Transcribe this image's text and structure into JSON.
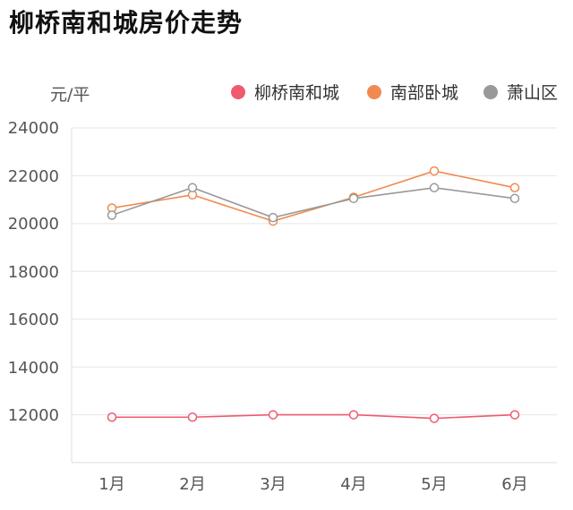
{
  "title": "柳桥南和城房价走势",
  "chart_data": {
    "type": "line",
    "title": "柳桥南和城房价走势",
    "ylabel": "元/平",
    "categories": [
      "1月",
      "2月",
      "3月",
      "4月",
      "5月",
      "6月"
    ],
    "ylim": [
      10000,
      24000
    ],
    "yticks": [
      "24000",
      "22000",
      "20000",
      "18000",
      "16000",
      "14000",
      "12000"
    ],
    "legend_position": "top-right",
    "grid": true,
    "series": [
      {
        "name": "柳桥南和城",
        "color": "#ef5a6f",
        "values": [
          11900,
          11900,
          12000,
          12000,
          11850,
          12000
        ]
      },
      {
        "name": "南部卧城",
        "color": "#f08a50",
        "values": [
          20650,
          21200,
          20100,
          21100,
          22200,
          21500
        ]
      },
      {
        "name": "萧山区",
        "color": "#999999",
        "values": [
          20350,
          21500,
          20250,
          21050,
          21500,
          21050
        ]
      }
    ]
  }
}
